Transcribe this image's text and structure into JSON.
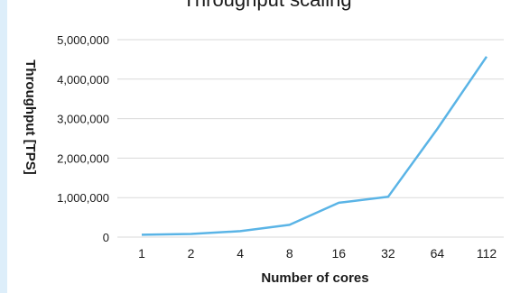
{
  "chart_data": {
    "type": "line",
    "title": "Throughput scaling",
    "xlabel": "Number of cores",
    "ylabel": "Throughput [TPS]",
    "categories": [
      "1",
      "2",
      "4",
      "8",
      "16",
      "32",
      "64",
      "112"
    ],
    "series": [
      {
        "values": [
          60000,
          80000,
          150000,
          310000,
          870000,
          1020000,
          2740000,
          4570000
        ]
      }
    ],
    "ylim": [
      0,
      5000000
    ],
    "yticks": [
      "0",
      "1,000,000",
      "2,000,000",
      "3,000,000",
      "4,000,000",
      "5,000,000"
    ],
    "grid": true,
    "line_color": "#5ab4e6"
  }
}
